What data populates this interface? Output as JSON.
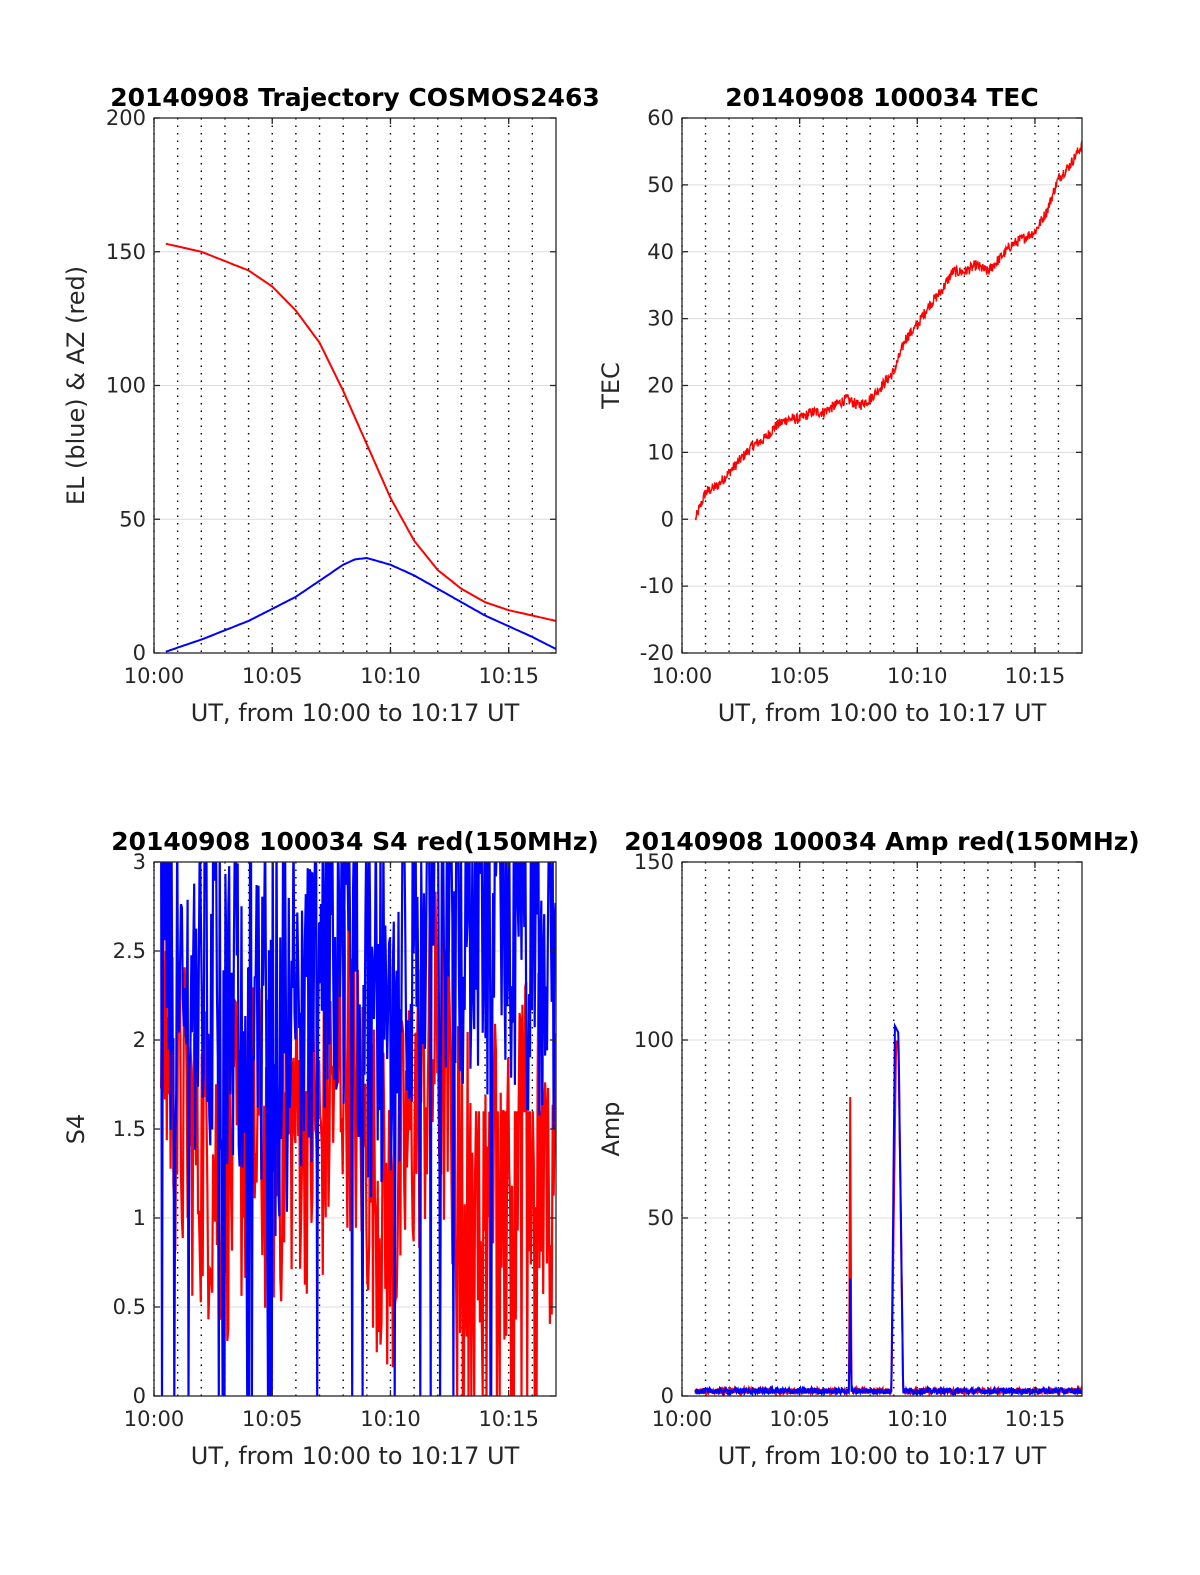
{
  "chart_data": [
    {
      "type": "line",
      "title": "20140908 Trajectory COSMOS2463",
      "xlabel": "UT, from 10:00 to 10:17 UT",
      "ylabel": "EL (blue) & AZ (red)",
      "xlim": [
        0,
        17
      ],
      "ylim": [
        0,
        200
      ],
      "xticks": [
        "10:00",
        "10:05",
        "10:10",
        "10:15"
      ],
      "yticks": [
        "0",
        "50",
        "100",
        "150",
        "200"
      ],
      "grid": true,
      "series": [
        {
          "color": "#ff0000",
          "x": [
            0.5,
            2,
            4,
            5,
            6,
            7,
            8,
            9,
            10,
            11,
            12,
            13,
            14,
            15,
            16,
            17
          ],
          "values": [
            153,
            150,
            143,
            137,
            128,
            116,
            98,
            78,
            58,
            42,
            31,
            24,
            19,
            16,
            14,
            12
          ]
        },
        {
          "color": "#0000ff",
          "x": [
            0.5,
            2,
            4,
            6,
            7,
            8,
            8.5,
            9,
            10,
            11,
            12,
            13,
            14,
            15,
            16,
            17
          ],
          "values": [
            0.5,
            5,
            12,
            21,
            27,
            33,
            35,
            35.5,
            33,
            29,
            24,
            19,
            14,
            10,
            6,
            1.5
          ]
        }
      ]
    },
    {
      "type": "line",
      "title": "20140908 100034 TEC",
      "xlabel": "UT, from 10:00 to 10:17 UT",
      "ylabel": "TEC",
      "xlim": [
        0,
        17
      ],
      "ylim": [
        -20,
        60
      ],
      "xticks": [
        "10:00",
        "10:05",
        "10:10",
        "10:15"
      ],
      "yticks": [
        "-20",
        "-10",
        "0",
        "10",
        "20",
        "30",
        "40",
        "50",
        "60"
      ],
      "grid": true,
      "series": [
        {
          "color": "#ff0000",
          "x": [
            0.57,
            1,
            1.5,
            2,
            2.5,
            3,
            3.5,
            4,
            4.5,
            5,
            5.5,
            6,
            6.5,
            7,
            7.5,
            8,
            8.5,
            9,
            9.5,
            10,
            10.5,
            11,
            11.5,
            12,
            12.5,
            13,
            13.5,
            14,
            14.5,
            15,
            15.5,
            16,
            16.5,
            17
          ],
          "values": [
            0,
            4,
            5,
            7,
            9,
            11,
            12,
            14,
            15,
            15,
            16,
            16,
            17,
            18,
            17,
            18,
            20,
            22,
            27,
            29,
            32,
            34,
            37,
            37,
            38,
            37,
            39,
            41,
            42,
            43,
            46,
            51,
            53,
            56
          ]
        }
      ]
    },
    {
      "type": "line",
      "title": "20140908 100034 S4 red(150MHz)",
      "xlabel": "UT, from 10:00 to 10:17 UT",
      "ylabel": "S4",
      "xlim": [
        0,
        17
      ],
      "ylim": [
        0,
        3
      ],
      "xticks": [
        "10:00",
        "10:05",
        "10:10",
        "10:15"
      ],
      "yticks": [
        "0",
        "0.5",
        "1",
        "1.5",
        "2",
        "2.5",
        "3"
      ],
      "grid": true,
      "series": [
        {
          "color": "#ff0000",
          "x": [
            0.3,
            1,
            2,
            3,
            4,
            5,
            6,
            7,
            8,
            9,
            10,
            11,
            12,
            13,
            14,
            15,
            16,
            17
          ],
          "values": [
            2.2,
            1.6,
            1.4,
            1.2,
            1.5,
            1.3,
            1.6,
            1.4,
            2.0,
            1.4,
            0.9,
            1.6,
            2.0,
            1.2,
            1.4,
            1.2,
            1.5,
            1.3
          ]
        },
        {
          "color": "#0000ff",
          "x": [
            0.3,
            1,
            2,
            3,
            4,
            5,
            6,
            7,
            8,
            9,
            10,
            11,
            12,
            13,
            14,
            15,
            16,
            17
          ],
          "values": [
            2.8,
            2.1,
            2.4,
            2.0,
            2.2,
            1.7,
            2.1,
            2.3,
            2.6,
            2.0,
            2.1,
            2.5,
            2.6,
            2.7,
            2.5,
            2.6,
            2.3,
            2.4
          ]
        }
      ]
    },
    {
      "type": "line",
      "title": "20140908 100034 Amp red(150MHz)",
      "xlabel": "UT, from 10:00 to 10:17 UT",
      "ylabel": "Amp",
      "xlim": [
        0,
        17
      ],
      "ylim": [
        0,
        150
      ],
      "xticks": [
        "10:00",
        "10:05",
        "10:10",
        "10:15"
      ],
      "yticks": [
        "0",
        "50",
        "100",
        "150"
      ],
      "grid": true,
      "series": [
        {
          "color": "#ff0000",
          "x": [
            0.57,
            7.1,
            7.15,
            7.2,
            8.9,
            9.1,
            9.2,
            9.4,
            17
          ],
          "values": [
            1,
            1,
            84,
            1,
            1,
            100,
            98,
            1,
            1
          ]
        },
        {
          "color": "#0000ff",
          "x": [
            0.57,
            7.1,
            7.15,
            7.2,
            8.9,
            9.05,
            9.2,
            9.4,
            17
          ],
          "values": [
            1,
            1,
            33,
            1,
            1,
            104,
            102,
            1,
            1
          ]
        }
      ]
    }
  ]
}
